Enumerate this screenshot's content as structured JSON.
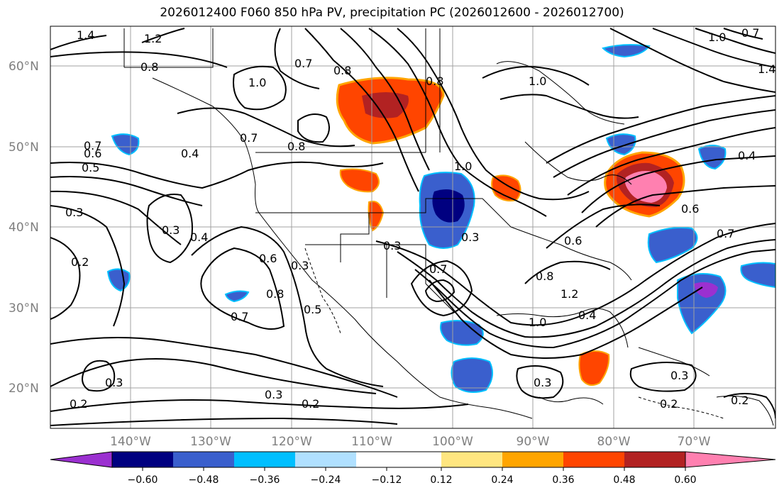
{
  "title": "2026012400 F060 850 hPa PV, precipitation PC (2026012600 - 2026012700)",
  "map": {
    "lat_labels": [
      "60°N",
      "50°N",
      "40°N",
      "30°N",
      "20°N"
    ],
    "lon_labels": [
      "140°W",
      "130°W",
      "120°W",
      "110°W",
      "100°W",
      "90°W",
      "80°W",
      "70°W"
    ],
    "contour_labels": [
      "1.4",
      "1.2",
      "1.0",
      "0.8",
      "0.7",
      "0.6",
      "0.5",
      "0.4",
      "0.3",
      "0.2",
      "0.7",
      "1.0",
      "0.8",
      "0.8",
      "0.6",
      "0.7",
      "0.3",
      "0.4",
      "0.3",
      "0.3",
      "0.8",
      "0.6",
      "0.7",
      "0.5",
      "0.3",
      "0.2",
      "0.3",
      "0.2",
      "0.8",
      "1.2",
      "1.0",
      "0.4",
      "0.6",
      "0.7",
      "0.4",
      "0.3",
      "0.2",
      "1.0",
      "1.4",
      "0.7",
      "0.2",
      "0.3",
      "0.7",
      "0.8",
      "1.0",
      "0.3"
    ]
  },
  "colorbar": {
    "tick_labels": [
      "−0.60",
      "−0.48",
      "−0.36",
      "−0.24",
      "−0.12",
      "0.12",
      "0.24",
      "0.36",
      "0.48",
      "0.60"
    ],
    "colors": [
      "#9b30d0",
      "#000080",
      "#3a5fcd",
      "#00bfff",
      "#b0e0ff",
      "#ffffff",
      "#ffe680",
      "#ffa500",
      "#ff4500",
      "#b22222",
      "#ff80b0"
    ]
  },
  "colors": {
    "neg_strong": "#9b30d0",
    "neg_dark": "#000080",
    "neg_mid": "#3a5fcd",
    "neg_light": "#00bfff",
    "pos_light": "#ffe680",
    "pos_mid": "#ffa500",
    "pos_strong": "#ff4500",
    "pos_dark": "#b22222",
    "pos_max": "#ff80b0"
  }
}
